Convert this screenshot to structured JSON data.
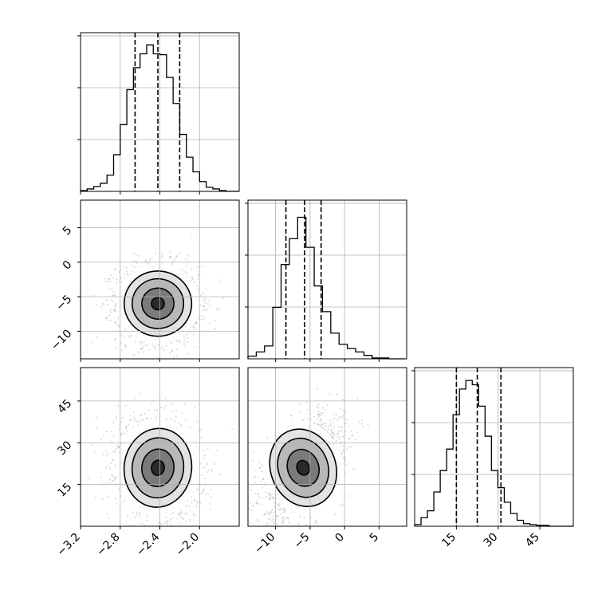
{
  "chart_data": {
    "type": "corner",
    "title": "",
    "parameters": [
      "",
      "",
      ""
    ],
    "ranges": [
      [
        -3.2,
        -1.6
      ],
      [
        -14,
        9
      ],
      [
        0,
        57
      ]
    ],
    "ticks": [
      {
        "values": [
          -3.2,
          -2.8,
          -2.4,
          -2.0
        ],
        "labels": [
          "−3.2",
          "−2.8",
          "−2.4",
          "−2.0"
        ]
      },
      {
        "values": [
          -10,
          -5,
          0,
          5
        ],
        "labels": [
          "−10",
          "−5",
          "0",
          "5"
        ]
      },
      {
        "values": [
          15,
          30,
          45
        ],
        "labels": [
          "15",
          "30",
          "45"
        ]
      }
    ],
    "quantiles": [
      [
        -2.65,
        -2.42,
        -2.2
      ],
      [
        -8.5,
        -5.8,
        -3.4
      ],
      [
        15,
        22.5,
        31
      ]
    ],
    "histograms": [
      {
        "edges_start": -3.2,
        "bin_width": 0.0667,
        "counts": [
          1,
          3,
          6,
          10,
          20,
          45,
          82,
          125,
          152,
          169,
          180,
          169,
          168,
          140,
          108,
          70,
          42,
          24,
          12,
          5,
          3,
          1,
          0,
          0
        ],
        "ylim": [
          0,
          195
        ]
      },
      {
        "edges_start": -14,
        "bin_width": 1.2,
        "counts": [
          3,
          8,
          15,
          60,
          110,
          140,
          165,
          130,
          85,
          55,
          30,
          17,
          12,
          8,
          4,
          1,
          1,
          0,
          0
        ],
        "ylim": [
          0,
          185
        ]
      },
      {
        "edges_start": 0,
        "bin_width": 2.3,
        "counts": [
          2,
          10,
          18,
          40,
          65,
          90,
          130,
          160,
          170,
          165,
          140,
          105,
          65,
          45,
          28,
          15,
          7,
          3,
          2,
          1,
          1,
          0,
          0,
          0,
          0
        ],
        "ylim": [
          0,
          185
        ]
      }
    ],
    "panels_2d": [
      {
        "x_param": 0,
        "y_param": 1,
        "mean": [
          -2.42,
          -6.0
        ],
        "std": [
          0.18,
          2.5
        ],
        "rho": -0.05,
        "contour_levels": [
          0.4,
          1.0,
          1.6,
          2.1
        ],
        "points": 1800
      },
      {
        "x_param": 0,
        "y_param": 2,
        "mean": [
          -2.42,
          21.0
        ],
        "std": [
          0.18,
          7.5
        ],
        "rho": -0.15,
        "contour_levels": [
          0.4,
          1.0,
          1.6,
          2.1
        ],
        "points": 1800
      },
      {
        "x_param": 1,
        "y_param": 2,
        "mean": [
          -6.0,
          21.0
        ],
        "std": [
          2.5,
          7.5
        ],
        "rho": 0.45,
        "contour_levels": [
          0.4,
          1.0,
          1.6,
          2.1
        ],
        "points": 1800
      }
    ],
    "grid": true,
    "legend": "none"
  }
}
